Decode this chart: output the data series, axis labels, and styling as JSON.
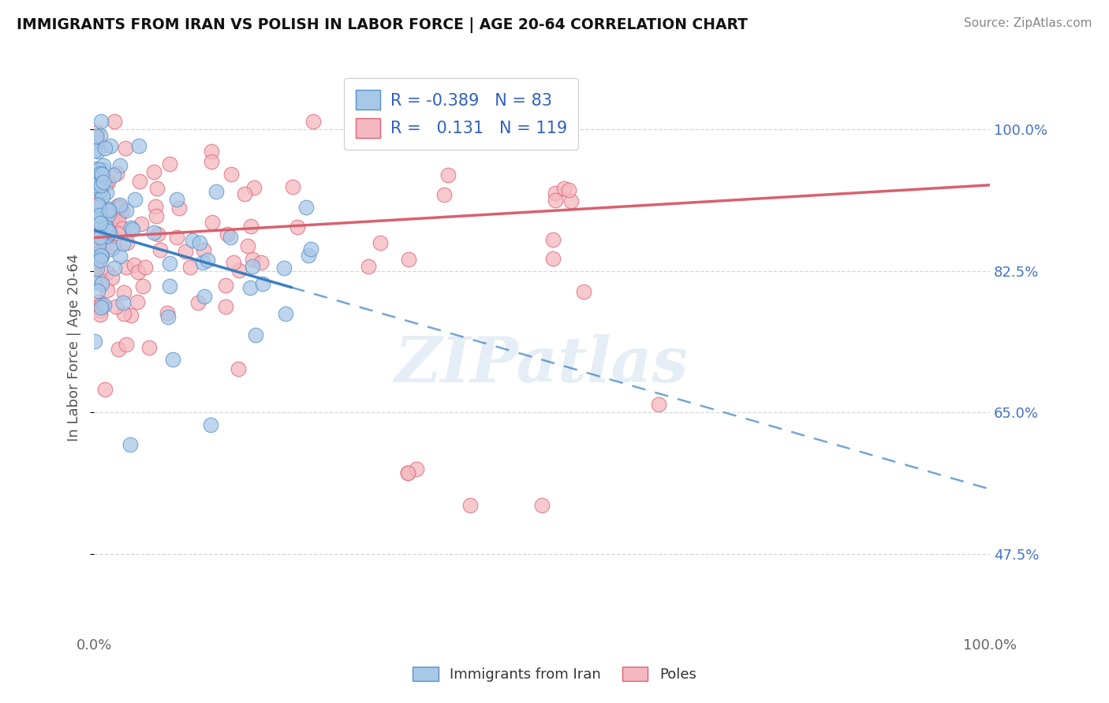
{
  "title": "IMMIGRANTS FROM IRAN VS POLISH IN LABOR FORCE | AGE 20-64 CORRELATION CHART",
  "source": "Source: ZipAtlas.com",
  "ylabel": "In Labor Force | Age 20-64",
  "xlim": [
    0.0,
    1.0
  ],
  "ylim": [
    0.38,
    1.08
  ],
  "x_tick_labels": [
    "0.0%",
    "100.0%"
  ],
  "y_ticks": [
    0.475,
    0.65,
    0.825,
    1.0
  ],
  "y_tick_labels": [
    "47.5%",
    "65.0%",
    "82.5%",
    "100.0%"
  ],
  "iran_color": "#a8c8e8",
  "iran_edge_color": "#5590c8",
  "poles_color": "#f4b8c0",
  "poles_edge_color": "#e06070",
  "iran_R": -0.389,
  "iran_N": 83,
  "poles_R": 0.131,
  "poles_N": 119,
  "iran_line_color": "#3a7fc1",
  "poles_line_color": "#d96070",
  "grid_color": "#cccccc",
  "background_color": "#ffffff",
  "watermark": "ZIPatlas",
  "legend_R_color": "#3060c0",
  "tick_color_y": "#4472c4",
  "tick_color_x": "#666666"
}
